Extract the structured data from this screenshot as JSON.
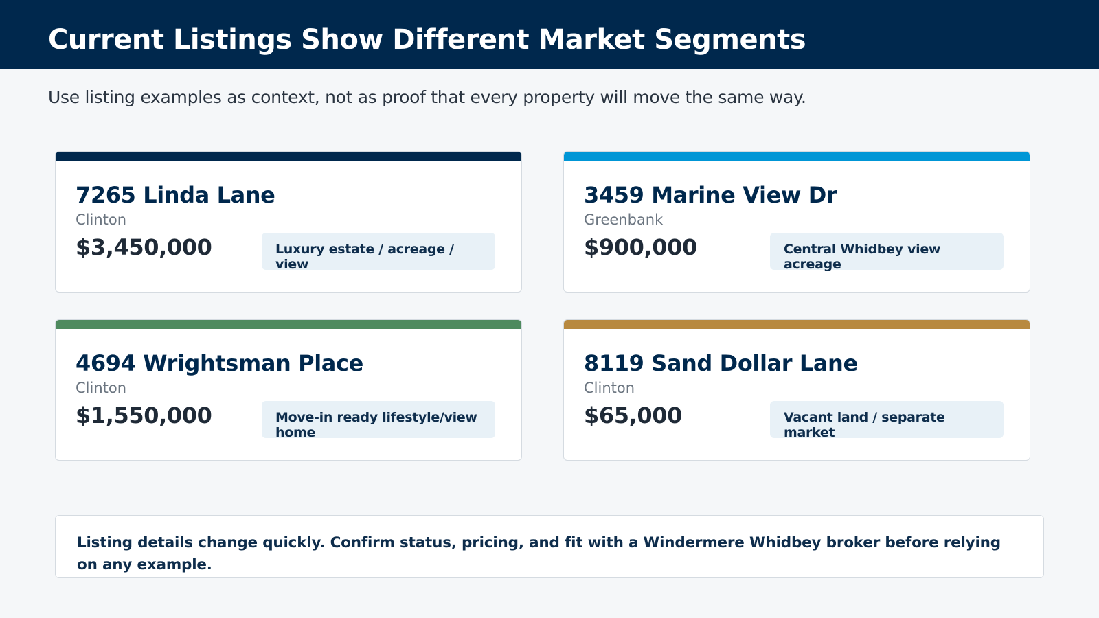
{
  "header": {
    "title": "Current Listings Show Different Market Segments",
    "background_color": "#00284d"
  },
  "subtitle": "Use listing examples as context, not as proof that every property will move the same way.",
  "listings": [
    {
      "address": "7265 Linda Lane",
      "city": "Clinton",
      "price": "$3,450,000",
      "tag": "Luxury estate / acreage / view",
      "accent_color": "#00284d"
    },
    {
      "address": "3459 Marine View Dr",
      "city": "Greenbank",
      "price": "$900,000",
      "tag": "Central Whidbey view acreage",
      "accent_color": "#0096d6"
    },
    {
      "address": "4694 Wrightsman Place",
      "city": "Clinton",
      "price": "$1,550,000",
      "tag": "Move-in ready lifestyle/view home",
      "accent_color": "#4e8a5e"
    },
    {
      "address": "8119 Sand Dollar Lane",
      "city": "Clinton",
      "price": "$65,000",
      "tag": "Vacant land / separate market",
      "accent_color": "#b8893f"
    }
  ],
  "note": "Listing details change quickly. Confirm status, pricing, and fit with a Windermere Whidbey broker before relying on any example."
}
